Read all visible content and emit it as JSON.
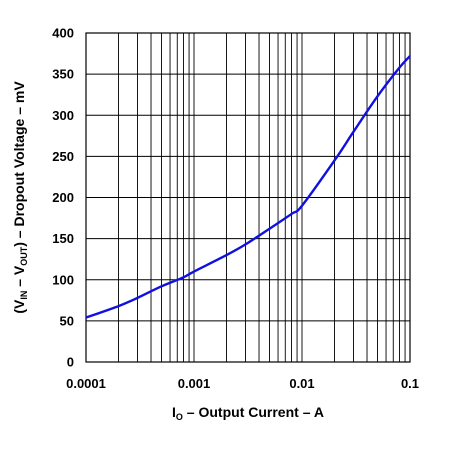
{
  "chart_data": {
    "type": "line",
    "x_scale": "log",
    "xlim": [
      0.0001,
      0.1
    ],
    "ylim": [
      0,
      400
    ],
    "grid": true,
    "x_ticks": [
      0.0001,
      0.001,
      0.01,
      0.1
    ],
    "x_tick_labels": [
      "0.0001",
      "0.001",
      "0.01",
      "0.1"
    ],
    "y_ticks": [
      0,
      50,
      100,
      150,
      200,
      250,
      300,
      350,
      400
    ],
    "y_tick_labels": [
      "0",
      "50",
      "100",
      "150",
      "200",
      "250",
      "300",
      "350",
      "400"
    ],
    "xlabel": {
      "main": "I",
      "sub": "O",
      "rest": " – Output Current – A"
    },
    "ylabel": {
      "open": "(V",
      "sub1": "IN",
      "mid": " – V",
      "sub2": "OUT",
      "rest": ") – Dropout Voltage – mV"
    },
    "series_color": "#1010e0",
    "series": [
      {
        "x": [
          0.0001,
          0.0002,
          0.0003,
          0.0005,
          0.0008,
          0.001,
          0.002,
          0.003,
          0.005,
          0.008,
          0.01,
          0.02,
          0.03,
          0.05,
          0.08,
          0.1
        ],
        "y": [
          54,
          68,
          78,
          92,
          103,
          110,
          130,
          143,
          162,
          180,
          190,
          245,
          280,
          323,
          358,
          372
        ]
      }
    ]
  }
}
